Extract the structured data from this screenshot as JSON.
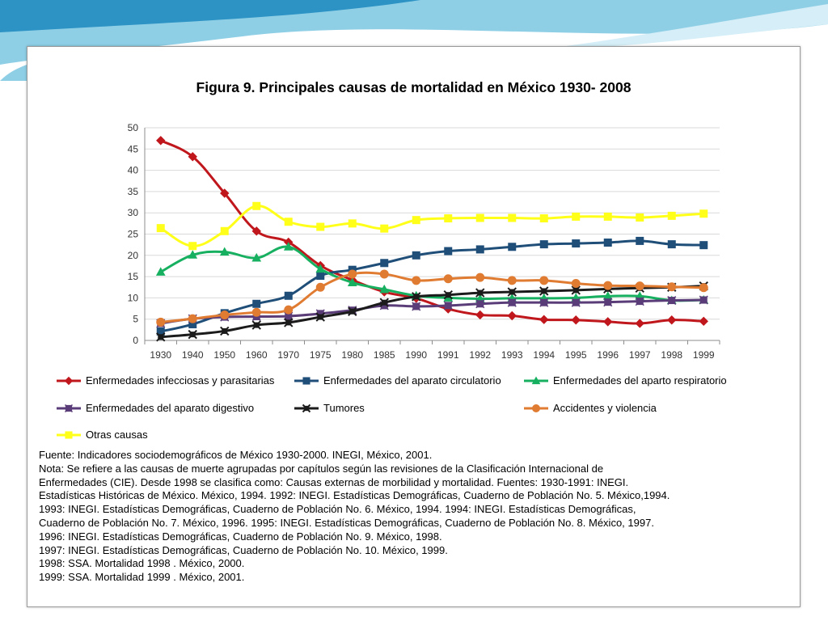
{
  "colors": {
    "background_wave_1": "#8fcfe6",
    "background_wave_2": "#2d93c4",
    "background_wave_3": "#d5eef7",
    "panel_border": "#9a9a9a",
    "gridline": "#d9d9d9"
  },
  "chart_data": {
    "type": "line",
    "title": "Figura 9. Principales causas de mortalidad en México 1930- 2008",
    "xlabel": "",
    "ylabel": "",
    "categories": [
      "1930",
      "1940",
      "1950",
      "1960",
      "1970",
      "1975",
      "1980",
      "1985",
      "1990",
      "1991",
      "1992",
      "1993",
      "1994",
      "1995",
      "1996",
      "1997",
      "1998",
      "1999"
    ],
    "ylim": [
      0,
      50
    ],
    "yticks": [
      0,
      5,
      10,
      15,
      20,
      25,
      30,
      35,
      40,
      45,
      50
    ],
    "grid": "horizontal",
    "legend_position": "bottom",
    "series": [
      {
        "name": "Enfermedades infecciosas y parasitarias",
        "color": "#c0171d",
        "marker": "diamond",
        "values": [
          47,
          43.2,
          34.6,
          25.7,
          23.1,
          17.6,
          14.2,
          11.4,
          9.9,
          7.4,
          6.0,
          5.8,
          4.9,
          4.8,
          4.4,
          4.0,
          4.8,
          4.5
        ]
      },
      {
        "name": "Enfermedades del aparato circulatorio",
        "color": "#1f4e79",
        "marker": "square",
        "values": [
          2.1,
          3.8,
          6.4,
          8.6,
          10.5,
          15.2,
          16.6,
          18.2,
          20.0,
          21.0,
          21.4,
          22.0,
          22.6,
          22.8,
          23.0,
          23.4,
          22.6,
          22.4
        ]
      },
      {
        "name": "Enfermedades del aparto respiratorio",
        "color": "#17b060",
        "marker": "triangle",
        "values": [
          16.1,
          20.1,
          20.8,
          19.4,
          22.0,
          16.8,
          13.6,
          12.0,
          10.5,
          10.0,
          9.8,
          9.9,
          9.9,
          10.0,
          10.4,
          10.4,
          9.4,
          9.5
        ]
      },
      {
        "name": "Enfermedades del aparato digestivo",
        "color": "#5a3d78",
        "marker": "xsquare",
        "values": [
          4.0,
          5.1,
          5.5,
          5.6,
          5.7,
          6.3,
          7.1,
          8.2,
          8.0,
          8.2,
          8.6,
          8.9,
          8.9,
          8.9,
          9.0,
          9.2,
          9.4,
          9.5
        ]
      },
      {
        "name": "Tumores",
        "color": "#1b1b1b",
        "marker": "star",
        "values": [
          0.8,
          1.4,
          2.2,
          3.6,
          4.2,
          5.5,
          6.8,
          8.9,
          10.3,
          10.7,
          11.2,
          11.4,
          11.6,
          11.8,
          12.1,
          12.3,
          12.5,
          12.8
        ]
      },
      {
        "name": "Accidentes y violencia",
        "color": "#e07b32",
        "marker": "circle",
        "values": [
          4.3,
          5.1,
          6.0,
          6.6,
          7.2,
          12.5,
          15.6,
          15.6,
          14.1,
          14.5,
          14.8,
          14.1,
          14.1,
          13.4,
          12.9,
          12.8,
          12.6,
          12.4
        ]
      },
      {
        "name": "Otras causas",
        "color": "#ffff1a",
        "marker": "square",
        "values": [
          26.4,
          22.2,
          25.7,
          31.6,
          27.9,
          26.7,
          27.5,
          26.3,
          28.3,
          28.7,
          28.8,
          28.8,
          28.7,
          29.1,
          29.1,
          28.9,
          29.3,
          29.8
        ]
      }
    ]
  },
  "footnote": [
    "Fuente: Indicadores sociodemográficos de México 1930-2000. INEGI, México, 2001.",
    "Nota: Se refiere a las causas de muerte agrupadas por capítulos según las revisiones de la Clasificación Internacional de",
    "Enfermedades (CIE). Desde 1998 se clasifica como: Causas externas de morbilidad y mortalidad. Fuentes: 1930-1991: INEGI.",
    "Estadísticas Históricas de México. México, 1994. 1992: INEGI. Estadísticas Demográficas, Cuaderno de Población No. 5. México,1994.",
    "1993: INEGI. Estadísticas Demográficas, Cuaderno de Población No. 6. México, 1994. 1994: INEGI. Estadísticas Demográficas,",
    "Cuaderno de Población No. 7. México, 1996. 1995: INEGI. Estadísticas Demográficas, Cuaderno de Población No. 8. México, 1997.",
    "1996: INEGI. Estadísticas Demográficas, Cuaderno de Población No. 9. México, 1998.",
    "1997: INEGI. Estadísticas Demográficas, Cuaderno de Población No. 10. México, 1999.",
    "1998: SSA. Mortalidad 1998 . México, 2000.",
    "1999: SSA. Mortalidad 1999 . México, 2001."
  ]
}
